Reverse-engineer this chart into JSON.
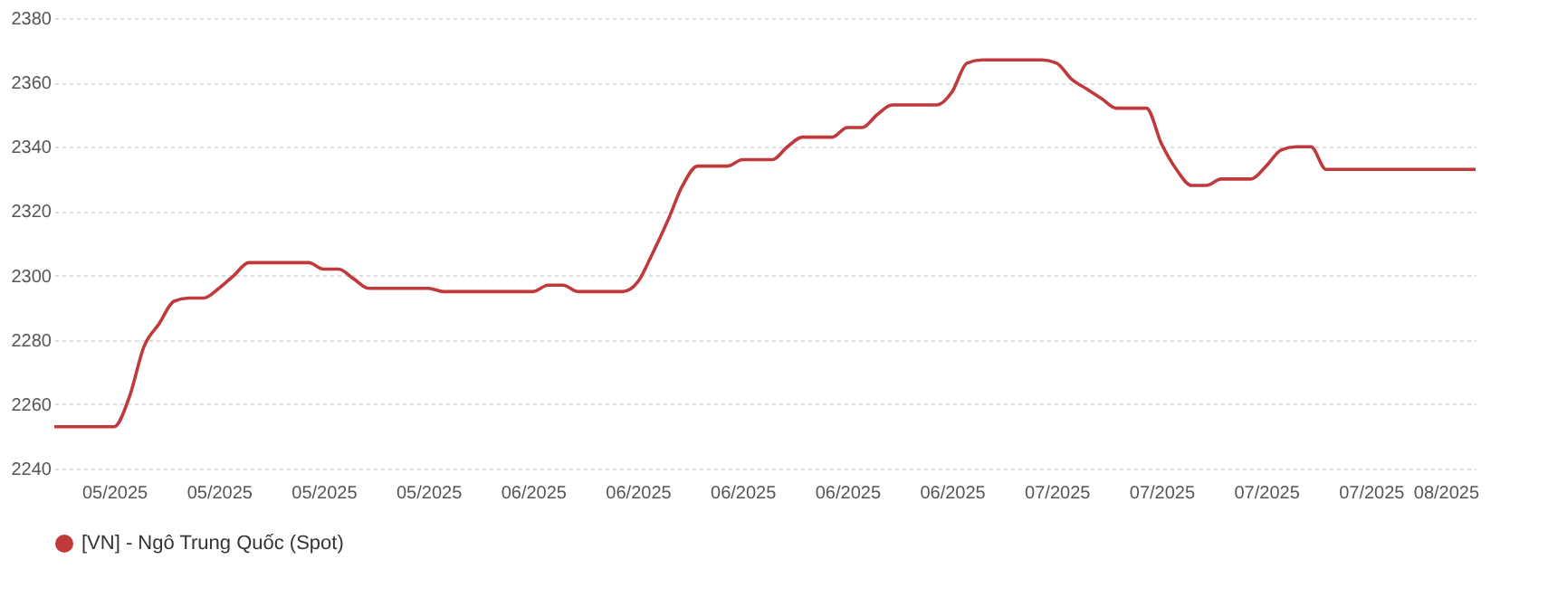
{
  "chart_data": {
    "type": "line",
    "categories": [
      null,
      null,
      null,
      null,
      "05/2025",
      null,
      null,
      null,
      null,
      null,
      null,
      "05/2025",
      null,
      null,
      null,
      null,
      null,
      null,
      "05/2025",
      null,
      null,
      null,
      null,
      null,
      null,
      "05/2025",
      null,
      null,
      null,
      null,
      null,
      null,
      "06/2025",
      null,
      null,
      null,
      null,
      null,
      null,
      "06/2025",
      null,
      null,
      null,
      null,
      null,
      null,
      "06/2025",
      null,
      null,
      null,
      null,
      null,
      null,
      "06/2025",
      null,
      null,
      null,
      null,
      null,
      null,
      "06/2025",
      null,
      null,
      null,
      null,
      null,
      null,
      "07/2025",
      null,
      null,
      null,
      null,
      null,
      null,
      "07/2025",
      null,
      null,
      null,
      null,
      null,
      null,
      "07/2025",
      null,
      null,
      null,
      null,
      null,
      null,
      "07/2025",
      null,
      null,
      null,
      null,
      "08/2025",
      null,
      null
    ],
    "series": [
      {
        "name": "[VN] - Ngô Trung Quốc (Spot)",
        "color": "#c0393b",
        "values": [
          2253,
          2253,
          2253,
          2253,
          2253,
          2262,
          2278,
          2285,
          2292,
          2293,
          2293,
          2296,
          2300,
          2304,
          2304,
          2304,
          2304,
          2304,
          2302,
          2302,
          2299,
          2296,
          2296,
          2296,
          2296,
          2296,
          2295,
          2295,
          2295,
          2295,
          2295,
          2295,
          2295,
          2297,
          2297,
          2295,
          2295,
          2295,
          2295,
          2298,
          2307,
          2317,
          2328,
          2334,
          2334,
          2334,
          2336,
          2336,
          2336,
          2340,
          2343,
          2343,
          2343,
          2346,
          2346,
          2350,
          2353,
          2353,
          2353,
          2353,
          2357,
          2366,
          2367,
          2367,
          2367,
          2367,
          2367,
          2366,
          2361,
          2358,
          2355,
          2352,
          2352,
          2352,
          2341,
          2333,
          2328,
          2328,
          2330,
          2330,
          2330,
          2334,
          2339,
          2340,
          2340,
          2333,
          2333,
          2333,
          2333,
          2333,
          2333,
          2333,
          2333,
          2333,
          2333,
          2333
        ]
      }
    ],
    "ylim": [
      2240,
      2380
    ],
    "yticks": [
      2240,
      2260,
      2280,
      2300,
      2320,
      2340,
      2360,
      2380
    ],
    "grid": "y",
    "legend": "bottom",
    "marker": "none",
    "line_style": "solid"
  }
}
